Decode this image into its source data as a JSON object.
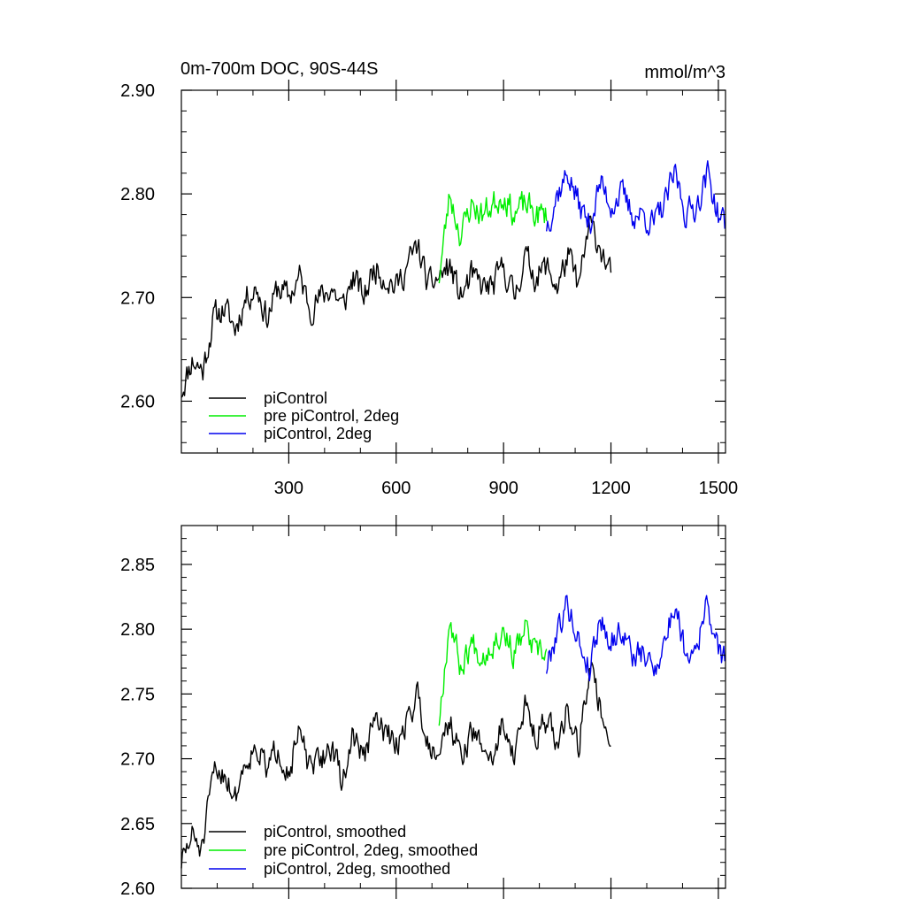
{
  "chart_data": [
    {
      "type": "line",
      "title_left": "0m-700m DOC, 90S-44S",
      "title_right": "mmol/m^3",
      "xlim": [
        0,
        1520
      ],
      "ylim": [
        2.55,
        2.9
      ],
      "xticks": [
        300,
        600,
        900,
        1200,
        1500
      ],
      "xtick_labels": [
        "300",
        "600",
        "900",
        "1200",
        "1500"
      ],
      "yticks": [
        2.6,
        2.7,
        2.8,
        2.9
      ],
      "ytick_labels": [
        "2.60",
        "2.70",
        "2.80",
        "2.90"
      ],
      "show_xtick_labels": true,
      "legend_position": "bottom-left",
      "series": [
        {
          "name": "piControl",
          "color": "#000000",
          "x": [
            0,
            30,
            60,
            90,
            120,
            150,
            180,
            210,
            240,
            270,
            300,
            330,
            360,
            390,
            420,
            450,
            480,
            510,
            540,
            570,
            600,
            630,
            660,
            690,
            720,
            750,
            780,
            810,
            840,
            870,
            900,
            930,
            960,
            990,
            1020,
            1050,
            1080,
            1110,
            1140,
            1170,
            1200
          ],
          "y": [
            2.61,
            2.64,
            2.63,
            2.68,
            2.69,
            2.67,
            2.7,
            2.71,
            2.68,
            2.71,
            2.7,
            2.72,
            2.69,
            2.7,
            2.71,
            2.69,
            2.72,
            2.7,
            2.73,
            2.72,
            2.71,
            2.73,
            2.75,
            2.71,
            2.72,
            2.73,
            2.7,
            2.72,
            2.71,
            2.71,
            2.73,
            2.7,
            2.74,
            2.72,
            2.73,
            2.71,
            2.74,
            2.71,
            2.77,
            2.75,
            2.72
          ]
        },
        {
          "name": "pre piControl, 2deg",
          "color": "#00ee00",
          "x": [
            720,
            750,
            780,
            810,
            840,
            870,
            900,
            930,
            960,
            990,
            1020
          ],
          "y": [
            2.72,
            2.8,
            2.76,
            2.79,
            2.78,
            2.79,
            2.8,
            2.78,
            2.79,
            2.78,
            2.78
          ]
        },
        {
          "name": "piControl, 2deg",
          "color": "#0000ee",
          "x": [
            1020,
            1050,
            1080,
            1110,
            1140,
            1170,
            1200,
            1230,
            1260,
            1290,
            1320,
            1350,
            1380,
            1410,
            1440,
            1470,
            1500,
            1520
          ],
          "y": [
            2.77,
            2.8,
            2.82,
            2.79,
            2.77,
            2.81,
            2.79,
            2.8,
            2.78,
            2.78,
            2.77,
            2.79,
            2.82,
            2.78,
            2.79,
            2.82,
            2.78,
            2.77
          ]
        }
      ]
    },
    {
      "type": "line",
      "xlim": [
        0,
        1520
      ],
      "ylim": [
        2.6,
        2.88
      ],
      "xticks": [
        300,
        600,
        900,
        1200,
        1500
      ],
      "yticks": [
        2.6,
        2.65,
        2.7,
        2.75,
        2.8,
        2.85
      ],
      "ytick_labels": [
        "2.60",
        "2.65",
        "2.70",
        "2.75",
        "2.80",
        "2.85"
      ],
      "show_xtick_labels": false,
      "legend_position": "bottom-left",
      "series": [
        {
          "name": "piControl, smoothed",
          "color": "#000000",
          "x": [
            0,
            30,
            60,
            90,
            120,
            150,
            180,
            210,
            240,
            270,
            300,
            330,
            360,
            390,
            420,
            450,
            480,
            510,
            540,
            570,
            600,
            630,
            660,
            690,
            720,
            750,
            780,
            810,
            840,
            870,
            900,
            930,
            960,
            990,
            1020,
            1050,
            1080,
            1110,
            1140,
            1170,
            1200
          ],
          "y": [
            2.62,
            2.64,
            2.63,
            2.69,
            2.69,
            2.67,
            2.7,
            2.71,
            2.69,
            2.71,
            2.69,
            2.72,
            2.69,
            2.7,
            2.71,
            2.68,
            2.72,
            2.7,
            2.73,
            2.72,
            2.71,
            2.73,
            2.75,
            2.71,
            2.71,
            2.73,
            2.7,
            2.72,
            2.71,
            2.7,
            2.73,
            2.7,
            2.74,
            2.72,
            2.73,
            2.71,
            2.74,
            2.71,
            2.77,
            2.74,
            2.71
          ]
        },
        {
          "name": "pre piControl, 2deg, smoothed",
          "color": "#00ee00",
          "x": [
            720,
            750,
            780,
            810,
            840,
            870,
            900,
            930,
            960,
            990,
            1020
          ],
          "y": [
            2.73,
            2.81,
            2.77,
            2.79,
            2.78,
            2.79,
            2.8,
            2.78,
            2.8,
            2.78,
            2.78
          ]
        },
        {
          "name": "piControl, 2deg, smoothed",
          "color": "#0000ee",
          "x": [
            1020,
            1050,
            1080,
            1110,
            1140,
            1170,
            1200,
            1230,
            1260,
            1290,
            1320,
            1350,
            1380,
            1410,
            1440,
            1470,
            1500,
            1520
          ],
          "y": [
            2.77,
            2.8,
            2.82,
            2.79,
            2.77,
            2.81,
            2.79,
            2.8,
            2.78,
            2.78,
            2.77,
            2.79,
            2.82,
            2.78,
            2.79,
            2.82,
            2.78,
            2.78
          ]
        }
      ]
    }
  ]
}
